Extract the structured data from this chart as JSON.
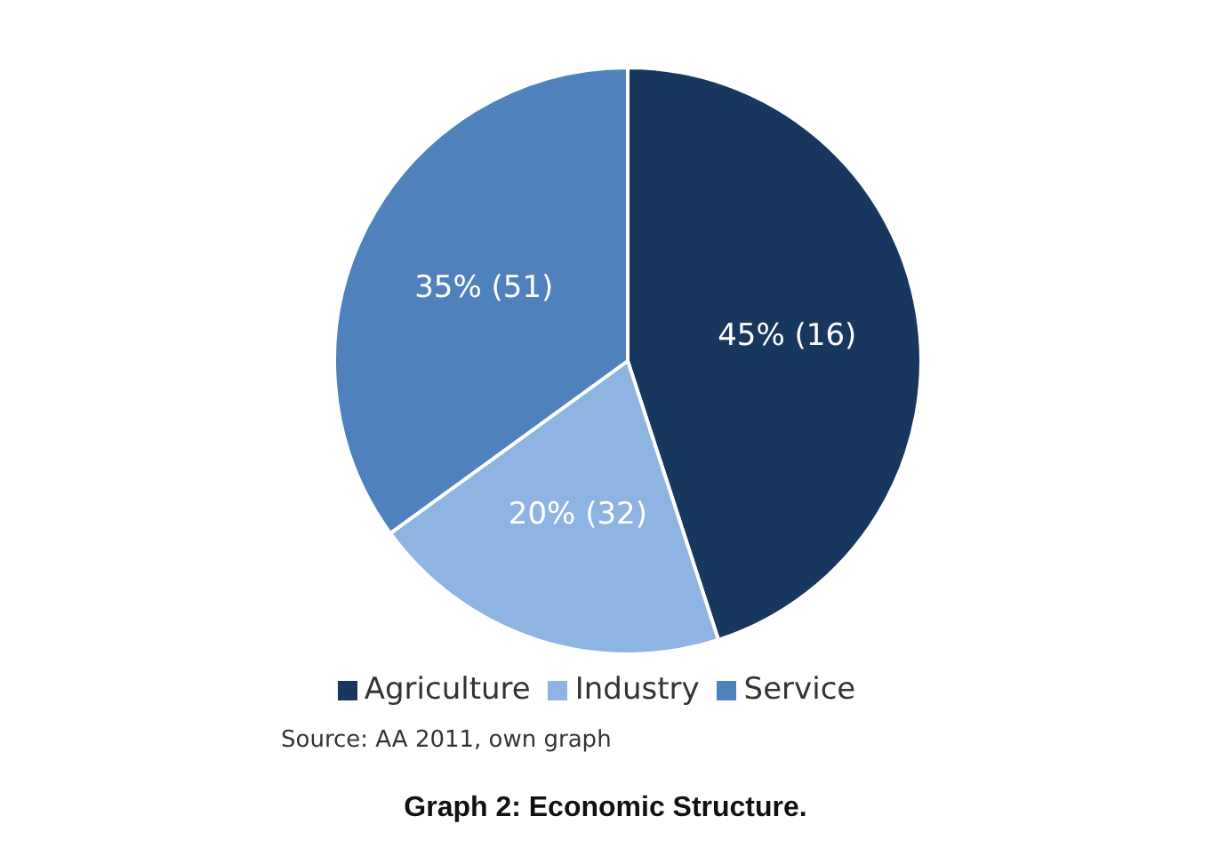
{
  "chart_data": {
    "type": "pie",
    "title": "Graph 2: Economic Structure.",
    "categories": [
      "Agriculture",
      "Industry",
      "Service"
    ],
    "values": [
      45,
      20,
      35
    ],
    "value_labels": [
      "45% (16)",
      "20% (32)",
      "35% (51)"
    ],
    "colors": [
      "#17375e",
      "#8eb4e3",
      "#4f81bd"
    ],
    "legend": "bottom",
    "annotations": [
      "Source:  AA 2011, own graph"
    ]
  }
}
